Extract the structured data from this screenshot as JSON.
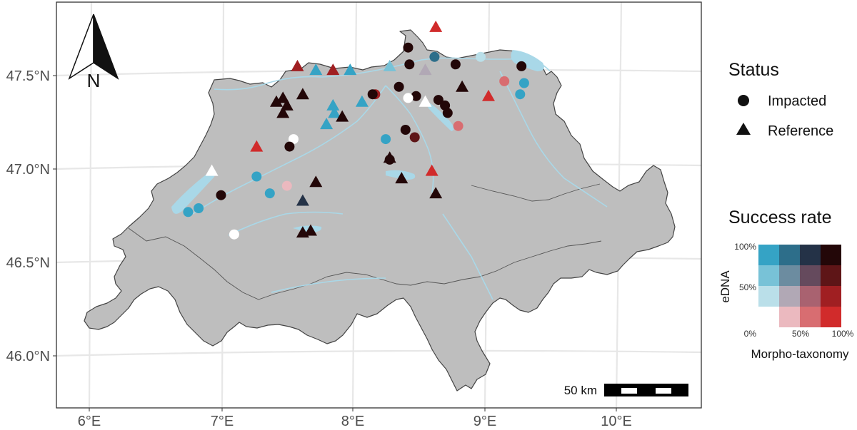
{
  "map": {
    "x_ticks": [
      "6°E",
      "7°E",
      "8°E",
      "9°E",
      "10°E"
    ],
    "y_ticks": [
      "47.5°N",
      "47.0°N",
      "46.5°N",
      "46.0°N"
    ],
    "north_label": "N",
    "scale_label": "50 km"
  },
  "legend": {
    "status_title": "Status",
    "status_items": [
      {
        "label": "Impacted",
        "shape": "circle"
      },
      {
        "label": "Reference",
        "shape": "triangle"
      }
    ],
    "success_title": "Success rate",
    "edna_label": "eDNA",
    "morpho_label": "Morpho-taxonomy",
    "y_ticks": [
      "100%",
      "50%",
      "0%"
    ],
    "x_ticks": [
      "50%",
      "100%"
    ],
    "matrix_rows": [
      [
        "#35a3c5",
        "#2d6e8a",
        "#243247",
        "#230708"
      ],
      [
        "#78c2d7",
        "#6c8ca0",
        "#654a5d",
        "#5e1517"
      ],
      [
        "#badfe9",
        "#b1a8b5",
        "#a96270",
        "#a01f22"
      ],
      [
        "#ffffff",
        "#ebb9bf",
        "#d86d71",
        "#d12b2b"
      ]
    ]
  },
  "chart_data": {
    "type": "scatter",
    "basemap": "Switzerland",
    "xlim": [
      5.8,
      10.6
    ],
    "ylim": [
      45.8,
      47.86
    ],
    "points": [
      {
        "lon": 8.63,
        "lat": 47.76,
        "shape": "triangle",
        "color": "#d12b2b"
      },
      {
        "lon": 8.42,
        "lat": 47.65,
        "shape": "circle",
        "color": "#230708"
      },
      {
        "lon": 8.62,
        "lat": 47.6,
        "shape": "circle",
        "color": "#2d6e8a"
      },
      {
        "lon": 8.97,
        "lat": 47.6,
        "shape": "circle",
        "color": "#badfe9"
      },
      {
        "lon": 8.43,
        "lat": 47.56,
        "shape": "circle",
        "color": "#230708"
      },
      {
        "lon": 8.78,
        "lat": 47.56,
        "shape": "circle",
        "color": "#230708"
      },
      {
        "lon": 9.28,
        "lat": 47.55,
        "shape": "circle",
        "color": "#230708"
      },
      {
        "lon": 8.55,
        "lat": 47.53,
        "shape": "triangle",
        "color": "#b1a8b5"
      },
      {
        "lon": 8.28,
        "lat": 47.55,
        "shape": "triangle",
        "color": "#78c2d7"
      },
      {
        "lon": 7.58,
        "lat": 47.55,
        "shape": "triangle",
        "color": "#a01f22"
      },
      {
        "lon": 7.72,
        "lat": 47.53,
        "shape": "triangle",
        "color": "#35a3c5"
      },
      {
        "lon": 7.85,
        "lat": 47.53,
        "shape": "triangle",
        "color": "#a01f22"
      },
      {
        "lon": 7.98,
        "lat": 47.53,
        "shape": "triangle",
        "color": "#35a3c5"
      },
      {
        "lon": 9.15,
        "lat": 47.47,
        "shape": "circle",
        "color": "#d86d71"
      },
      {
        "lon": 9.3,
        "lat": 47.46,
        "shape": "circle",
        "color": "#35a3c5"
      },
      {
        "lon": 8.83,
        "lat": 47.44,
        "shape": "triangle",
        "color": "#230708"
      },
      {
        "lon": 8.35,
        "lat": 47.44,
        "shape": "circle",
        "color": "#230708"
      },
      {
        "lon": 9.27,
        "lat": 47.4,
        "shape": "circle",
        "color": "#35a3c5"
      },
      {
        "lon": 9.03,
        "lat": 47.39,
        "shape": "triangle",
        "color": "#d12b2b"
      },
      {
        "lon": 8.17,
        "lat": 47.4,
        "shape": "circle",
        "color": "#a01f22"
      },
      {
        "lon": 8.15,
        "lat": 47.4,
        "shape": "circle",
        "color": "#230708"
      },
      {
        "lon": 8.48,
        "lat": 47.39,
        "shape": "circle",
        "color": "#230708"
      },
      {
        "lon": 8.42,
        "lat": 47.38,
        "shape": "circle",
        "color": "#ffffff"
      },
      {
        "lon": 8.55,
        "lat": 47.36,
        "shape": "triangle",
        "color": "#ffffff"
      },
      {
        "lon": 8.65,
        "lat": 47.37,
        "shape": "circle",
        "color": "#230708"
      },
      {
        "lon": 8.7,
        "lat": 47.34,
        "shape": "circle",
        "color": "#230708"
      },
      {
        "lon": 8.72,
        "lat": 47.3,
        "shape": "circle",
        "color": "#230708"
      },
      {
        "lon": 7.62,
        "lat": 47.4,
        "shape": "triangle",
        "color": "#230708"
      },
      {
        "lon": 7.47,
        "lat": 47.38,
        "shape": "triangle",
        "color": "#230708"
      },
      {
        "lon": 7.42,
        "lat": 47.36,
        "shape": "triangle",
        "color": "#230708"
      },
      {
        "lon": 7.5,
        "lat": 47.34,
        "shape": "triangle",
        "color": "#230708"
      },
      {
        "lon": 7.47,
        "lat": 47.3,
        "shape": "triangle",
        "color": "#230708"
      },
      {
        "lon": 7.85,
        "lat": 47.34,
        "shape": "triangle",
        "color": "#35a3c5"
      },
      {
        "lon": 7.86,
        "lat": 47.3,
        "shape": "triangle",
        "color": "#35a3c5"
      },
      {
        "lon": 7.92,
        "lat": 47.28,
        "shape": "triangle",
        "color": "#230708"
      },
      {
        "lon": 8.07,
        "lat": 47.36,
        "shape": "triangle",
        "color": "#35a3c5"
      },
      {
        "lon": 7.8,
        "lat": 47.24,
        "shape": "triangle",
        "color": "#35a3c5"
      },
      {
        "lon": 8.4,
        "lat": 47.21,
        "shape": "circle",
        "color": "#230708"
      },
      {
        "lon": 8.47,
        "lat": 47.17,
        "shape": "circle",
        "color": "#5e1517"
      },
      {
        "lon": 8.25,
        "lat": 47.16,
        "shape": "circle",
        "color": "#35a3c5"
      },
      {
        "lon": 8.8,
        "lat": 47.23,
        "shape": "circle",
        "color": "#d86d71"
      },
      {
        "lon": 7.55,
        "lat": 47.16,
        "shape": "circle",
        "color": "#ffffff"
      },
      {
        "lon": 7.52,
        "lat": 47.12,
        "shape": "circle",
        "color": "#230708"
      },
      {
        "lon": 7.27,
        "lat": 47.12,
        "shape": "triangle",
        "color": "#d12b2b"
      },
      {
        "lon": 8.28,
        "lat": 47.06,
        "shape": "triangle",
        "color": "#230708"
      },
      {
        "lon": 8.28,
        "lat": 47.05,
        "shape": "circle",
        "color": "#230708"
      },
      {
        "lon": 8.6,
        "lat": 46.99,
        "shape": "triangle",
        "color": "#d12b2b"
      },
      {
        "lon": 8.37,
        "lat": 46.95,
        "shape": "triangle",
        "color": "#230708"
      },
      {
        "lon": 6.93,
        "lat": 46.99,
        "shape": "triangle",
        "color": "#ffffff"
      },
      {
        "lon": 7.27,
        "lat": 46.96,
        "shape": "circle",
        "color": "#35a3c5"
      },
      {
        "lon": 7.72,
        "lat": 46.93,
        "shape": "triangle",
        "color": "#230708"
      },
      {
        "lon": 7.5,
        "lat": 46.91,
        "shape": "circle",
        "color": "#ebb9bf"
      },
      {
        "lon": 7.37,
        "lat": 46.87,
        "shape": "circle",
        "color": "#35a3c5"
      },
      {
        "lon": 7.0,
        "lat": 46.86,
        "shape": "circle",
        "color": "#230708"
      },
      {
        "lon": 8.63,
        "lat": 46.87,
        "shape": "triangle",
        "color": "#230708"
      },
      {
        "lon": 7.62,
        "lat": 46.83,
        "shape": "triangle",
        "color": "#243247"
      },
      {
        "lon": 6.83,
        "lat": 46.79,
        "shape": "circle",
        "color": "#35a3c5"
      },
      {
        "lon": 6.75,
        "lat": 46.77,
        "shape": "circle",
        "color": "#35a3c5"
      },
      {
        "lon": 7.62,
        "lat": 46.66,
        "shape": "triangle",
        "color": "#230708"
      },
      {
        "lon": 7.68,
        "lat": 46.67,
        "shape": "triangle",
        "color": "#230708"
      },
      {
        "lon": 7.1,
        "lat": 46.65,
        "shape": "circle",
        "color": "#ffffff"
      }
    ]
  }
}
